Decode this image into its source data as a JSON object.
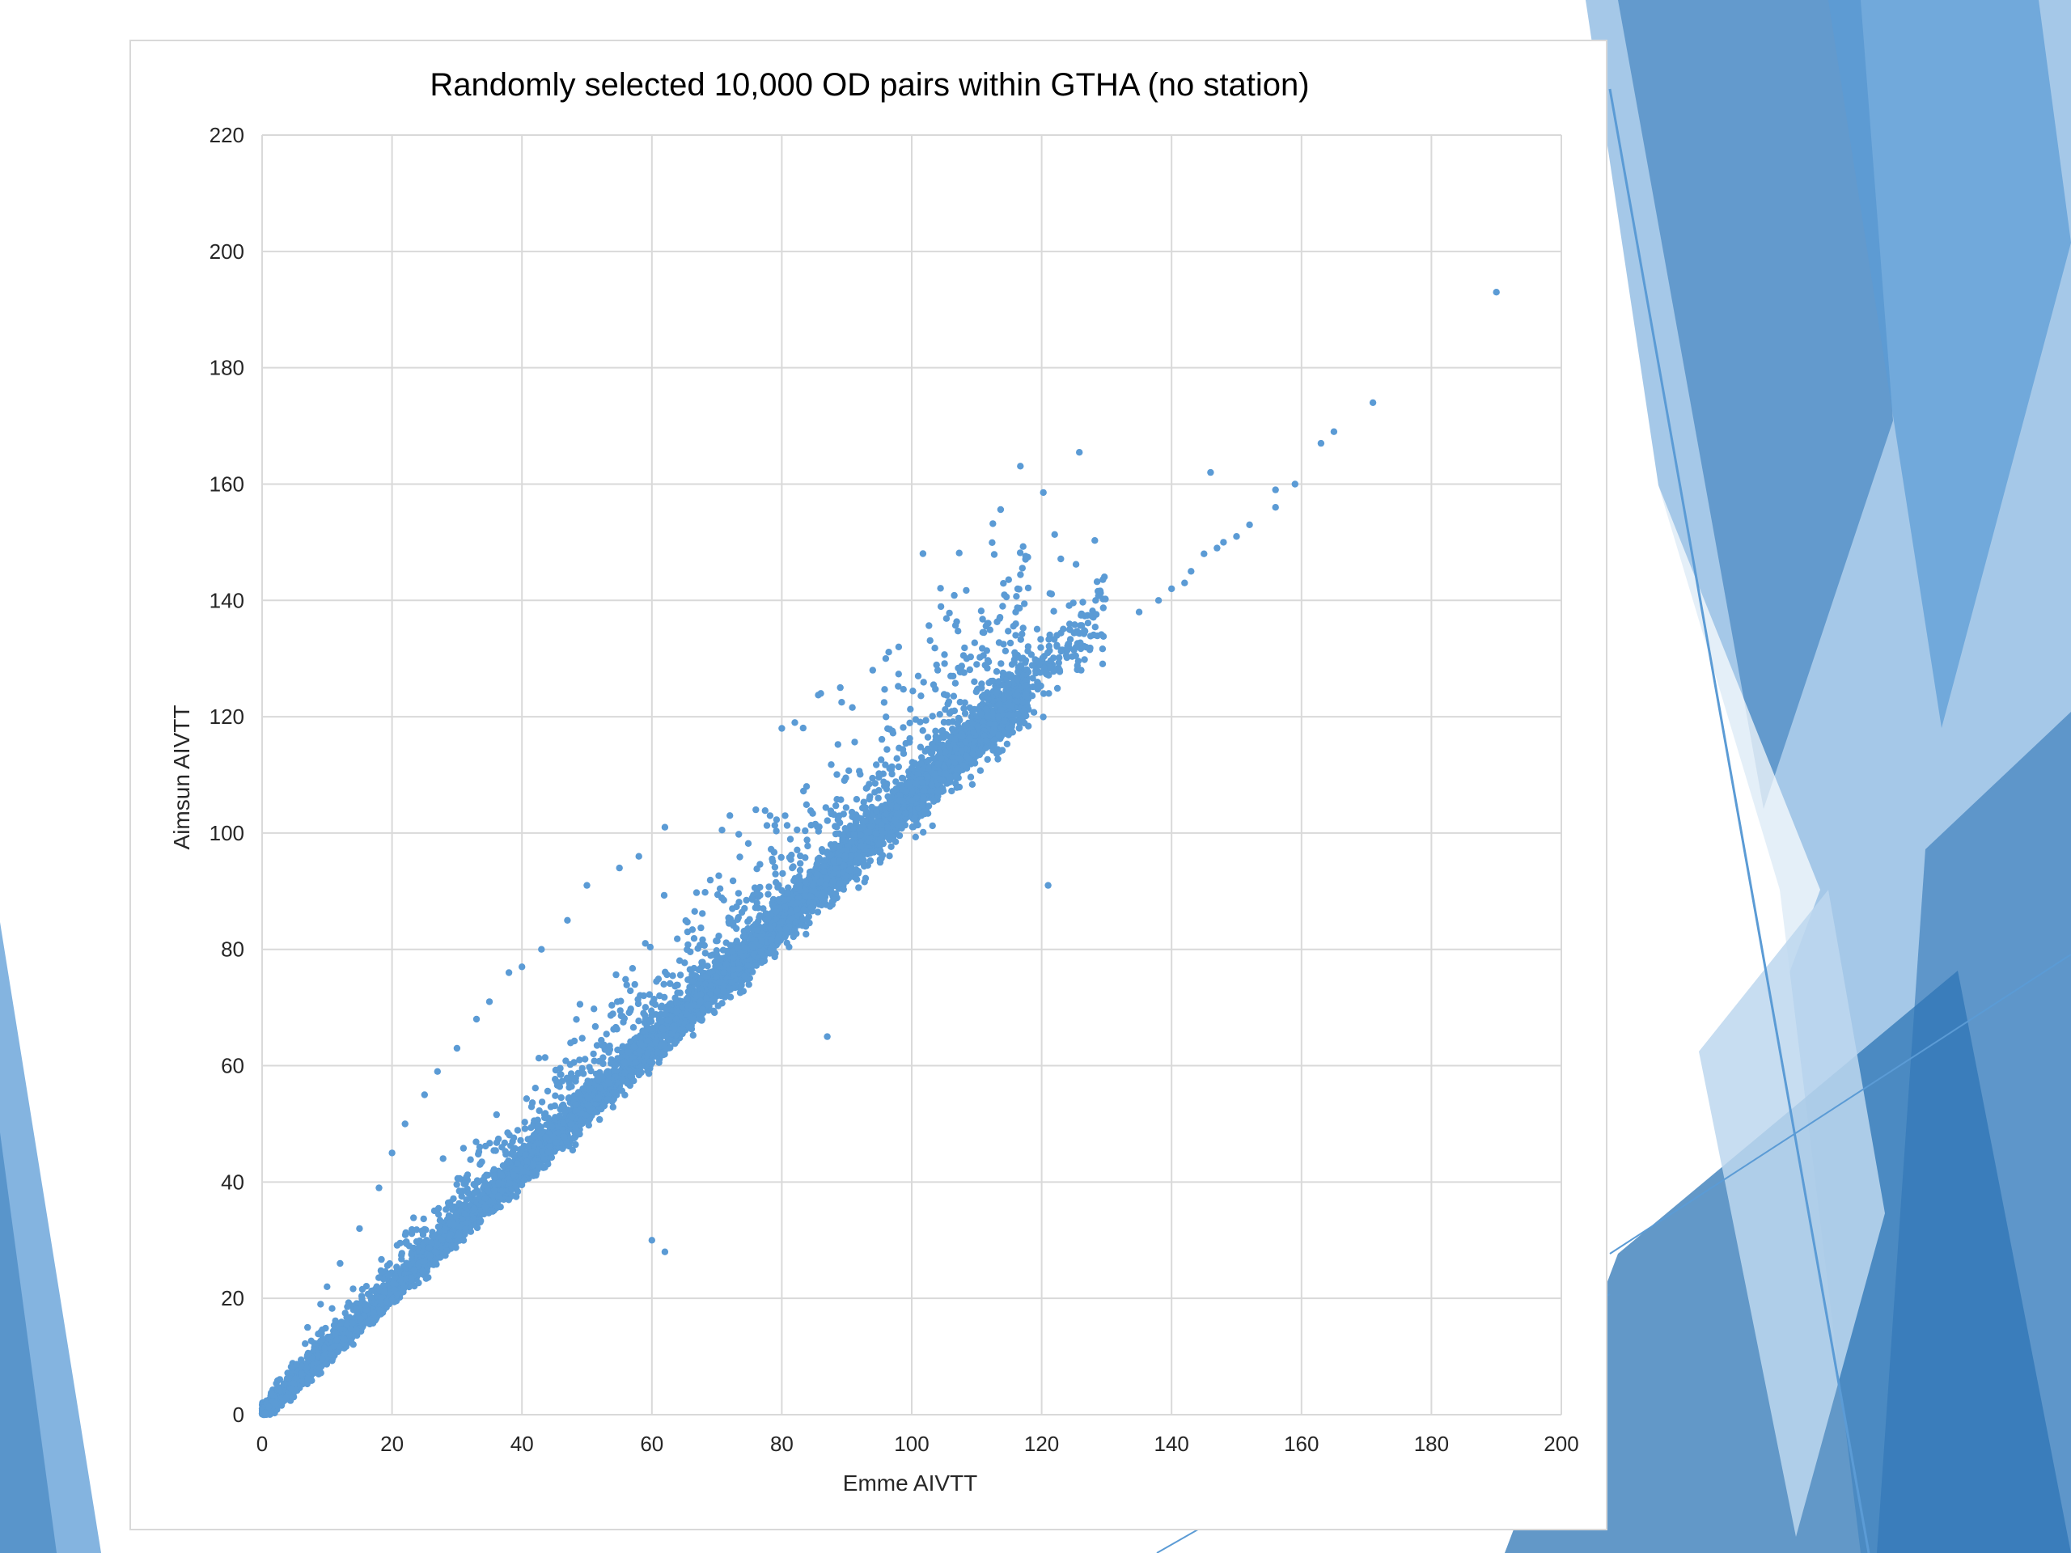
{
  "theme": {
    "background": "#ffffff",
    "accent_light": "#bdd7ee",
    "accent_mid": "#9dc3e6",
    "accent": "#5b9bd5",
    "accent_dark": "#2e75b6",
    "marker_color": "#5b9bd5",
    "grid_color": "#d9d9d9"
  },
  "chart_data": {
    "type": "scatter",
    "title": "Randomly selected 10,000 OD pairs within GTHA (no station)",
    "xlabel": "Emme AIVTT",
    "ylabel": "Aimsun AIVTT",
    "xlim": [
      0,
      200
    ],
    "ylim": [
      0,
      220
    ],
    "x_ticks": [
      0,
      20,
      40,
      60,
      80,
      100,
      120,
      140,
      160,
      180,
      200
    ],
    "y_ticks": [
      0,
      20,
      40,
      60,
      80,
      100,
      120,
      140,
      160,
      180,
      200,
      220
    ],
    "grid": true,
    "legend": "none",
    "series": [
      {
        "marker": "circle",
        "color": "#5b9bd5",
        "note_points_count": 10000,
        "points": [
          [
            190,
            193
          ],
          [
            171,
            174
          ],
          [
            165,
            169
          ],
          [
            163,
            167
          ],
          [
            159,
            160
          ],
          [
            156,
            159
          ],
          [
            156,
            156
          ],
          [
            146,
            162
          ],
          [
            152,
            153
          ],
          [
            150,
            151
          ],
          [
            148,
            150
          ],
          [
            147,
            149
          ],
          [
            145,
            148
          ],
          [
            143,
            145
          ],
          [
            142,
            143
          ],
          [
            140,
            142
          ],
          [
            138,
            140
          ],
          [
            135,
            138
          ],
          [
            121,
            91
          ],
          [
            87,
            65
          ],
          [
            60,
            30
          ],
          [
            62,
            28
          ],
          [
            114,
            139
          ],
          [
            116,
            138
          ],
          [
            116,
            134
          ],
          [
            110,
            129
          ],
          [
            106,
            127
          ],
          [
            104,
            128
          ],
          [
            101,
            127
          ],
          [
            98,
            132
          ],
          [
            96,
            130
          ],
          [
            94,
            128
          ],
          [
            89,
            125
          ],
          [
            86,
            124
          ],
          [
            82,
            119
          ],
          [
            80,
            118
          ],
          [
            76,
            104
          ],
          [
            72,
            103
          ],
          [
            62,
            101
          ],
          [
            58,
            96
          ],
          [
            55,
            94
          ],
          [
            50,
            91
          ],
          [
            47,
            85
          ],
          [
            43,
            80
          ],
          [
            40,
            77
          ],
          [
            38,
            76
          ],
          [
            35,
            71
          ],
          [
            33,
            68
          ],
          [
            30,
            63
          ],
          [
            27,
            59
          ],
          [
            25,
            55
          ],
          [
            22,
            50
          ],
          [
            20,
            45
          ],
          [
            18,
            39
          ],
          [
            15,
            32
          ],
          [
            12,
            26
          ],
          [
            10,
            22
          ],
          [
            9,
            19
          ],
          [
            7,
            15
          ]
        ]
      }
    ]
  }
}
